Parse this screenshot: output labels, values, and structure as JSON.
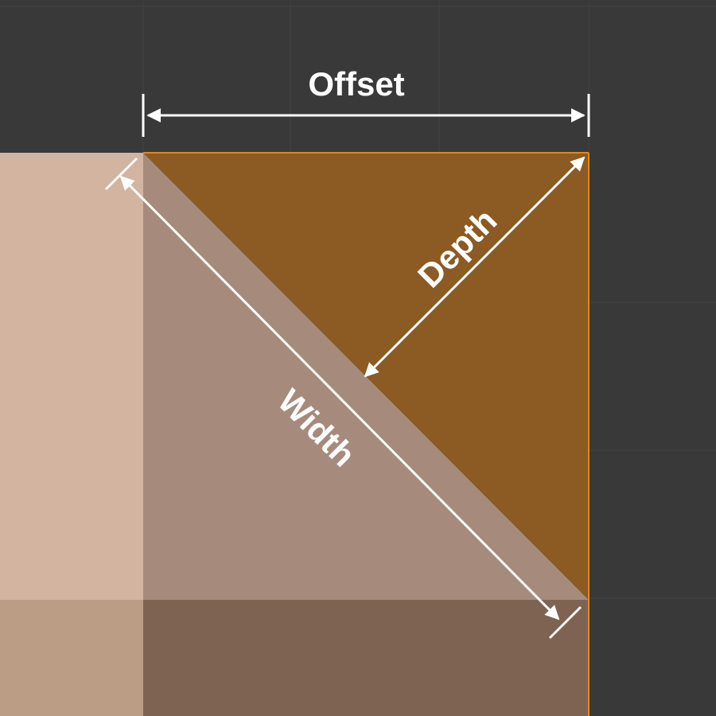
{
  "labels": {
    "offset": "Offset",
    "depth": "Depth",
    "width": "Width"
  },
  "colors": {
    "background": "#393939",
    "grid_line": "#434343",
    "face_light": "#d2b4a0",
    "face_mid": "#a68b7c",
    "face_bottom_left": "#ba9d84",
    "face_bottom_right": "#7e6353",
    "bevel_triangle": "#8c5a23",
    "edge_highlight": "#e08a18",
    "annotation": "#ffffff"
  }
}
